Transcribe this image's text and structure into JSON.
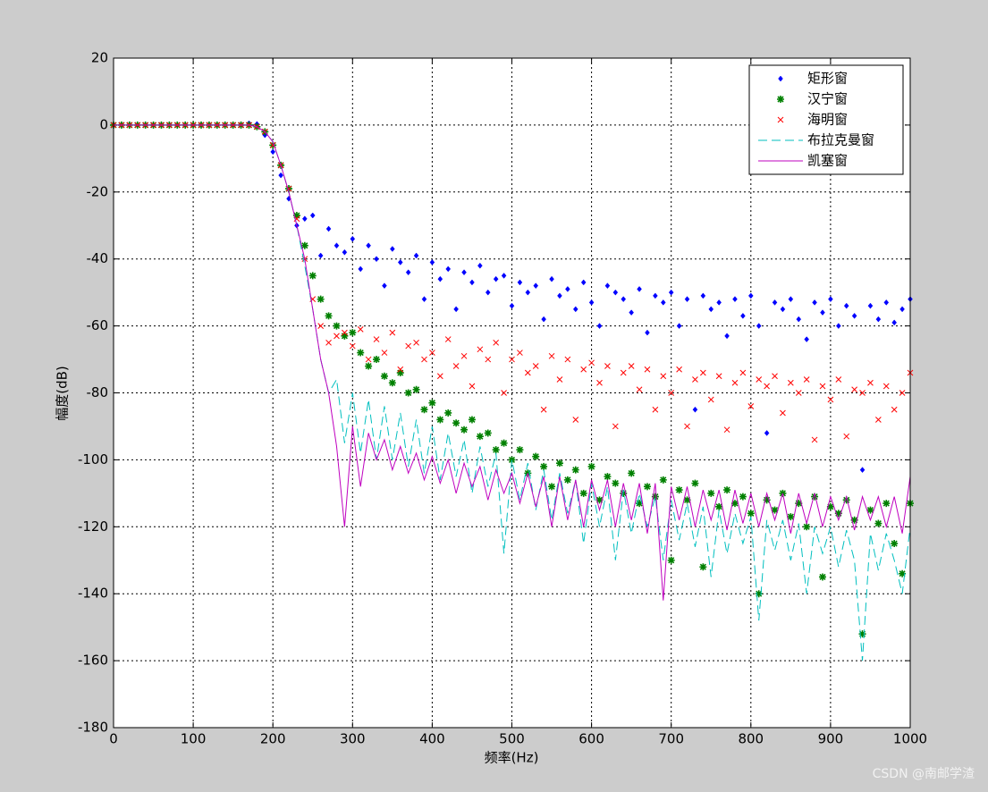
{
  "chart_data": {
    "type": "line",
    "xlabel": "频率(Hz)",
    "ylabel": "幅度(dB)",
    "xlim": [
      0,
      1000
    ],
    "ylim": [
      -180,
      20
    ],
    "xticks": [
      0,
      100,
      200,
      300,
      400,
      500,
      600,
      700,
      800,
      900,
      1000
    ],
    "yticks": [
      20,
      0,
      -20,
      -40,
      -60,
      -80,
      -100,
      -120,
      -140,
      -160,
      -180
    ],
    "grid": true,
    "legend": "upper right",
    "watermark": "CSDN @南邮学渣",
    "x": [
      0,
      10,
      20,
      30,
      40,
      50,
      60,
      70,
      80,
      90,
      100,
      110,
      120,
      130,
      140,
      150,
      160,
      170,
      180,
      190,
      200,
      210,
      220,
      230,
      240,
      250,
      260,
      270,
      280,
      290,
      300,
      310,
      320,
      330,
      340,
      350,
      360,
      370,
      380,
      390,
      400,
      410,
      420,
      430,
      440,
      450,
      460,
      470,
      480,
      490,
      500,
      510,
      520,
      530,
      540,
      550,
      560,
      570,
      580,
      590,
      600,
      610,
      620,
      630,
      640,
      650,
      660,
      670,
      680,
      690,
      700,
      710,
      720,
      730,
      740,
      750,
      760,
      770,
      780,
      790,
      800,
      810,
      820,
      830,
      840,
      850,
      860,
      870,
      880,
      890,
      900,
      910,
      920,
      930,
      940,
      950,
      960,
      970,
      980,
      990,
      1000
    ],
    "series": [
      {
        "name": "矩形窗",
        "color": "#0000ff",
        "marker": "diamond",
        "line_style": "none",
        "values": [
          0,
          0,
          0,
          0,
          0,
          0,
          0,
          0,
          0,
          0,
          0,
          0,
          0,
          0,
          0,
          0,
          0,
          0.5,
          0.3,
          -3,
          -8,
          -15,
          -22,
          -30,
          -28,
          -27,
          -39,
          -31,
          -36,
          -38,
          -34,
          -43,
          -36,
          -40,
          -48,
          -37,
          -41,
          -44,
          -39,
          -52,
          -41,
          -46,
          -43,
          -55,
          -44,
          -47,
          -42,
          -50,
          -46,
          -45,
          -54,
          -47,
          -50,
          -48,
          -58,
          -46,
          -51,
          -49,
          -55,
          -47,
          -53,
          -60,
          -48,
          -50,
          -52,
          -56,
          -49,
          -62,
          -51,
          -53,
          -50,
          -60,
          -52,
          -85,
          -51,
          -55,
          -53,
          -63,
          -52,
          -57,
          -51,
          -60,
          -92,
          -53,
          -55,
          -52,
          -58,
          -64,
          -53,
          -56,
          -52,
          -60,
          -54,
          -57,
          -103,
          -54,
          -58,
          -53,
          -59,
          -55,
          -52
        ]
      },
      {
        "name": "汉宁窗",
        "color": "#008000",
        "marker": "asterisk",
        "line_style": "none",
        "values": [
          0,
          0,
          0,
          0,
          0,
          0,
          0,
          0,
          0,
          0,
          0,
          0,
          0,
          0,
          0,
          0,
          0,
          0,
          -0.5,
          -2,
          -6,
          -12,
          -19,
          -27,
          -36,
          -45,
          -52,
          -57,
          -60,
          -63,
          -62,
          -68,
          -72,
          -70,
          -75,
          -77,
          -74,
          -80,
          -79,
          -85,
          -83,
          -88,
          -86,
          -89,
          -91,
          -88,
          -93,
          -92,
          -97,
          -95,
          -100,
          -97,
          -104,
          -99,
          -102,
          -108,
          -101,
          -106,
          -103,
          -110,
          -102,
          -112,
          -105,
          -107,
          -110,
          -104,
          -113,
          -108,
          -111,
          -106,
          -130,
          -109,
          -112,
          -107,
          -132,
          -110,
          -114,
          -109,
          -113,
          -111,
          -116,
          -140,
          -112,
          -115,
          -110,
          -117,
          -113,
          -120,
          -111,
          -135,
          -114,
          -116,
          -112,
          -118,
          -152,
          -115,
          -119,
          -113,
          -125,
          -134,
          -113
        ]
      },
      {
        "name": "海明窗",
        "color": "#ff0000",
        "marker": "x",
        "line_style": "none",
        "values": [
          0,
          0,
          0,
          0,
          0,
          0,
          0,
          0,
          0,
          0,
          0,
          0,
          0,
          0,
          0,
          0,
          0,
          0,
          -0.5,
          -2,
          -6,
          -12,
          -19,
          -28,
          -40,
          -52,
          -60,
          -65,
          -63,
          -62,
          -66,
          -61,
          -70,
          -64,
          -68,
          -62,
          -73,
          -66,
          -65,
          -70,
          -68,
          -75,
          -64,
          -72,
          -69,
          -78,
          -67,
          -70,
          -65,
          -80,
          -70,
          -68,
          -74,
          -72,
          -85,
          -69,
          -76,
          -70,
          -88,
          -73,
          -71,
          -77,
          -72,
          -90,
          -74,
          -72,
          -79,
          -73,
          -85,
          -75,
          -80,
          -73,
          -90,
          -76,
          -74,
          -82,
          -75,
          -91,
          -77,
          -74,
          -84,
          -76,
          -78,
          -75,
          -86,
          -77,
          -80,
          -76,
          -94,
          -78,
          -82,
          -76,
          -93,
          -79,
          -80,
          -77,
          -88,
          -78,
          -85,
          -80,
          -74
        ]
      },
      {
        "name": "布拉克曼窗",
        "color": "#00bfbf",
        "marker": "none",
        "line_style": "dashed",
        "values": [
          0,
          0,
          0,
          0,
          0,
          0,
          0,
          0,
          0,
          0,
          0,
          0,
          0,
          0,
          0,
          0,
          0,
          0,
          -0.5,
          -2,
          -5,
          -12,
          -20,
          -30,
          -42,
          -55,
          -70,
          -80,
          -76,
          -95,
          -80,
          -98,
          -82,
          -100,
          -84,
          -100,
          -86,
          -102,
          -88,
          -104,
          -90,
          -106,
          -92,
          -105,
          -94,
          -110,
          -96,
          -108,
          -98,
          -128,
          -100,
          -112,
          -101,
          -115,
          -103,
          -118,
          -104,
          -116,
          -106,
          -125,
          -107,
          -120,
          -108,
          -130,
          -109,
          -122,
          -110,
          -120,
          -111,
          -130,
          -112,
          -124,
          -113,
          -126,
          -114,
          -135,
          -115,
          -128,
          -116,
          -125,
          -117,
          -148,
          -118,
          -127,
          -118,
          -130,
          -119,
          -140,
          -120,
          -128,
          -120,
          -132,
          -121,
          -130,
          -160,
          -122,
          -133,
          -122,
          -130,
          -140,
          -120
        ]
      },
      {
        "name": "凯塞窗",
        "color": "#bf00bf",
        "marker": "none",
        "line_style": "solid",
        "values": [
          0,
          0,
          0,
          0,
          0,
          0,
          0,
          0,
          0,
          0,
          0,
          0,
          0,
          0,
          0,
          0,
          0,
          0,
          -0.5,
          -2,
          -5,
          -12,
          -20,
          -30,
          -40,
          -55,
          -70,
          -80,
          -96,
          -120,
          -90,
          -108,
          -92,
          -100,
          -94,
          -103,
          -96,
          -104,
          -98,
          -106,
          -99,
          -107,
          -100,
          -110,
          -101,
          -108,
          -102,
          -112,
          -103,
          -110,
          -104,
          -113,
          -104,
          -114,
          -105,
          -120,
          -105,
          -118,
          -106,
          -120,
          -106,
          -115,
          -106,
          -120,
          -107,
          -118,
          -107,
          -122,
          -107,
          -142,
          -108,
          -118,
          -108,
          -120,
          -109,
          -118,
          -109,
          -121,
          -109,
          -119,
          -110,
          -120,
          -110,
          -118,
          -110,
          -122,
          -110,
          -119,
          -110,
          -120,
          -111,
          -118,
          -111,
          -121,
          -111,
          -118,
          -111,
          -120,
          -111,
          -122,
          -105
        ]
      }
    ]
  }
}
